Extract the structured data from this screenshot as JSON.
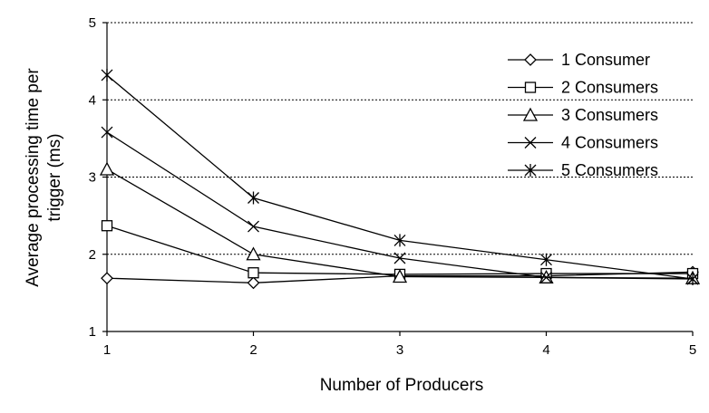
{
  "chart_data": {
    "type": "line",
    "title": "",
    "xlabel": "Number of Producers",
    "ylabel": "Average processing time per trigger (ms)",
    "ylabel_lines": [
      "Average processing time per",
      "trigger (ms)"
    ],
    "x": [
      1,
      2,
      3,
      4,
      5
    ],
    "xlim": [
      1,
      5
    ],
    "ylim": [
      1,
      5
    ],
    "xticks": [
      "1",
      "2",
      "3",
      "4",
      "5"
    ],
    "yticks": [
      "1",
      "2",
      "3",
      "4",
      "5"
    ],
    "grid": "horizontal dashed",
    "legend_position": "top-right",
    "series": [
      {
        "name": "1 Consumer",
        "marker": "diamond",
        "color": "#ffffff",
        "values": [
          1.69,
          1.63,
          1.72,
          1.72,
          1.77
        ]
      },
      {
        "name": "2 Consumers",
        "marker": "square",
        "color": "#ffffff",
        "values": [
          2.37,
          1.76,
          1.74,
          1.75,
          1.75
        ]
      },
      {
        "name": "3 Consumers",
        "marker": "triangle",
        "color": "#ffffcc",
        "values": [
          3.1,
          2.0,
          1.71,
          1.7,
          1.69
        ]
      },
      {
        "name": "4 Consumers",
        "marker": "x",
        "color": "#000000",
        "values": [
          3.58,
          2.36,
          1.95,
          1.7,
          1.68
        ]
      },
      {
        "name": "5 Consumers",
        "marker": "star",
        "color": "#000000",
        "values": [
          4.32,
          2.73,
          2.18,
          1.93,
          1.68
        ]
      }
    ]
  }
}
